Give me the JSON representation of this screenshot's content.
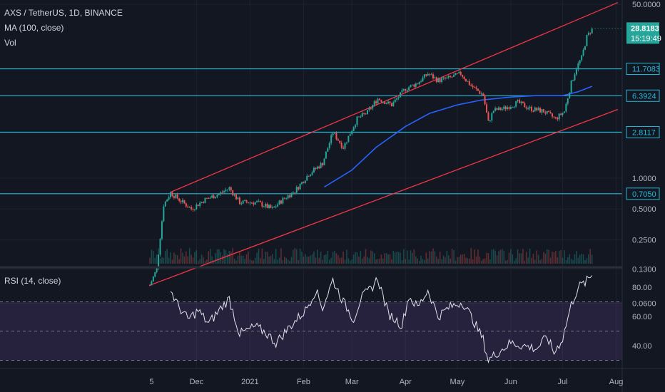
{
  "legend": {
    "title": "AXS / TetherUS, 1D, BINANCE",
    "ma": "MA (100, close)",
    "vol": "Vol",
    "rsi": "RSI (14, close)"
  },
  "colors": {
    "background": "#131722",
    "up": "#26a69a",
    "down": "#ef5350",
    "ma": "#2962ff",
    "level_line": "#22b8d8",
    "channel": "#f23645",
    "rsi_line": "#e0e3eb",
    "rsi_band": "#7e57c2"
  },
  "price_axis": {
    "ticks": [
      "50.0000",
      "1.0000",
      "0.5000",
      "0.2500",
      "0.1300",
      "0.0600"
    ],
    "current": {
      "price": "28.8183",
      "countdown": "15:19:49"
    }
  },
  "rsi_axis": {
    "ticks": [
      "80.00",
      "60.00",
      "40.00"
    ]
  },
  "time_axis": {
    "ticks": [
      "5",
      "Dec",
      "2021",
      "Feb",
      "Mar",
      "Apr",
      "May",
      "Jun",
      "Jul",
      "Aug"
    ]
  },
  "chart_data": {
    "type": "candlestick",
    "symbol": "AXS / TetherUS",
    "interval": "1D",
    "exchange": "BINANCE",
    "y_scale": "log",
    "ylim": [
      0.06,
      50
    ],
    "x_range": [
      "2020-11-04",
      "2021-08-02"
    ],
    "horizontal_levels": [
      {
        "label": "11.7083",
        "value": 11.7083
      },
      {
        "label": "6.3924",
        "value": 6.3924
      },
      {
        "label": "2.8117",
        "value": 2.8117
      },
      {
        "label": "0.7050",
        "value": 0.705
      }
    ],
    "price_path": [
      [
        "2020-11-04",
        0.09
      ],
      [
        "2020-11-08",
        0.13
      ],
      [
        "2020-11-12",
        0.55
      ],
      [
        "2020-11-16",
        0.72
      ],
      [
        "2020-11-22",
        0.6
      ],
      [
        "2020-11-28",
        0.5
      ],
      [
        "2020-12-06",
        0.62
      ],
      [
        "2020-12-14",
        0.7
      ],
      [
        "2020-12-20",
        0.8
      ],
      [
        "2020-12-26",
        0.58
      ],
      [
        "2021-01-05",
        0.58
      ],
      [
        "2021-01-14",
        0.5
      ],
      [
        "2021-01-20",
        0.62
      ],
      [
        "2021-01-27",
        0.75
      ],
      [
        "2021-02-04",
        1.1
      ],
      [
        "2021-02-12",
        1.4
      ],
      [
        "2021-02-18",
        2.8
      ],
      [
        "2021-02-24",
        2.0
      ],
      [
        "2021-03-04",
        3.8
      ],
      [
        "2021-03-10",
        4.4
      ],
      [
        "2021-03-16",
        6.0
      ],
      [
        "2021-03-24",
        5.2
      ],
      [
        "2021-04-01",
        7.5
      ],
      [
        "2021-04-08",
        8.5
      ],
      [
        "2021-04-14",
        10.5
      ],
      [
        "2021-04-20",
        9.0
      ],
      [
        "2021-04-26",
        9.5
      ],
      [
        "2021-05-03",
        10.5
      ],
      [
        "2021-05-09",
        8.0
      ],
      [
        "2021-05-16",
        6.5
      ],
      [
        "2021-05-19",
        3.5
      ],
      [
        "2021-05-22",
        4.6
      ],
      [
        "2021-05-28",
        4.8
      ],
      [
        "2021-06-05",
        5.5
      ],
      [
        "2021-06-12",
        4.8
      ],
      [
        "2021-06-20",
        4.5
      ],
      [
        "2021-06-27",
        3.8
      ],
      [
        "2021-07-02",
        4.5
      ],
      [
        "2021-07-06",
        8.5
      ],
      [
        "2021-07-09",
        12.0
      ],
      [
        "2021-07-12",
        15.0
      ],
      [
        "2021-07-15",
        24.0
      ],
      [
        "2021-07-18",
        28.8183
      ]
    ],
    "ma_100": [
      [
        "2021-02-13",
        0.82
      ],
      [
        "2021-03-01",
        1.2
      ],
      [
        "2021-03-15",
        2.0
      ],
      [
        "2021-04-01",
        3.2
      ],
      [
        "2021-04-15",
        4.3
      ],
      [
        "2021-05-01",
        5.2
      ],
      [
        "2021-05-15",
        5.8
      ],
      [
        "2021-06-01",
        6.2
      ],
      [
        "2021-06-15",
        6.4
      ],
      [
        "2021-07-01",
        6.4
      ],
      [
        "2021-07-10",
        7.0
      ],
      [
        "2021-07-18",
        7.9
      ]
    ],
    "channel_lines": [
      {
        "name": "upper",
        "points": [
          [
            "2020-11-16",
            0.73
          ],
          [
            "2021-08-02",
            52
          ]
        ]
      },
      {
        "name": "lower",
        "points": [
          [
            "2020-11-04",
            0.09
          ],
          [
            "2021-08-02",
            4.7
          ]
        ]
      }
    ],
    "rsi": {
      "length": 14,
      "ylim": [
        25,
        90
      ],
      "upper_band": 70,
      "middle": 50,
      "lower_band": 30,
      "path": [
        [
          "2020-11-16",
          78
        ],
        [
          "2020-11-20",
          68
        ],
        [
          "2020-11-26",
          58
        ],
        [
          "2020-12-02",
          64
        ],
        [
          "2020-12-08",
          55
        ],
        [
          "2020-12-16",
          67
        ],
        [
          "2020-12-20",
          72
        ],
        [
          "2020-12-26",
          48
        ],
        [
          "2021-01-04",
          53
        ],
        [
          "2021-01-10",
          49
        ],
        [
          "2021-01-16",
          42
        ],
        [
          "2021-01-24",
          53
        ],
        [
          "2021-02-02",
          64
        ],
        [
          "2021-02-08",
          78
        ],
        [
          "2021-02-12",
          66
        ],
        [
          "2021-02-18",
          85
        ],
        [
          "2021-02-24",
          70
        ],
        [
          "2021-03-02",
          58
        ],
        [
          "2021-03-06",
          72
        ],
        [
          "2021-03-12",
          79
        ],
        [
          "2021-03-16",
          86
        ],
        [
          "2021-03-22",
          62
        ],
        [
          "2021-03-30",
          54
        ],
        [
          "2021-04-03",
          74
        ],
        [
          "2021-04-08",
          66
        ],
        [
          "2021-04-14",
          78
        ],
        [
          "2021-04-20",
          60
        ],
        [
          "2021-04-26",
          66
        ],
        [
          "2021-05-04",
          70
        ],
        [
          "2021-05-10",
          58
        ],
        [
          "2021-05-16",
          44
        ],
        [
          "2021-05-19",
          30
        ],
        [
          "2021-05-24",
          35
        ],
        [
          "2021-06-01",
          42
        ],
        [
          "2021-06-08",
          40
        ],
        [
          "2021-06-16",
          38
        ],
        [
          "2021-06-22",
          46
        ],
        [
          "2021-06-26",
          35
        ],
        [
          "2021-07-01",
          45
        ],
        [
          "2021-07-06",
          68
        ],
        [
          "2021-07-10",
          80
        ],
        [
          "2021-07-14",
          83
        ],
        [
          "2021-07-18",
          88
        ]
      ]
    }
  }
}
